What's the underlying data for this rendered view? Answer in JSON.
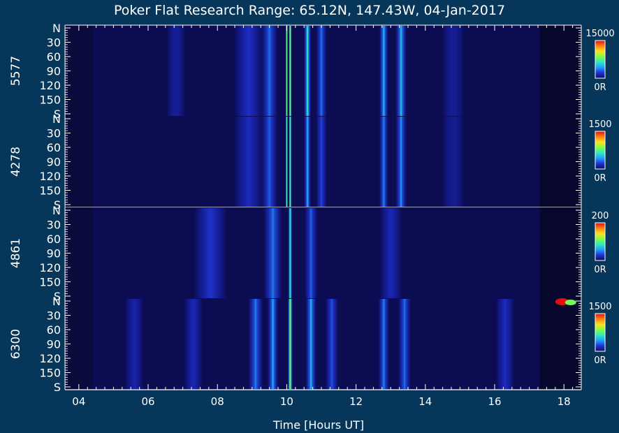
{
  "title": "Poker Flat Research Range: 65.12N, 147.43W, 04-Jan-2017",
  "xlabel": "Time [Hours UT]",
  "chart_data": {
    "type": "heatmap",
    "title": "Poker Flat Research Range: 65.12N, 147.43W, 04-Jan-2017",
    "xlabel": "Time [Hours UT]",
    "xlim": [
      3.6,
      18.5
    ],
    "xticks": [
      "04",
      "06",
      "08",
      "10",
      "12",
      "14",
      "16",
      "18"
    ],
    "xtick_values": [
      4,
      6,
      8,
      10,
      12,
      14,
      16,
      18
    ],
    "y_axis_labels": [
      "N",
      "30",
      "60",
      "90",
      "120",
      "150",
      "S"
    ],
    "y_axis_values": [
      0,
      30,
      60,
      90,
      120,
      150,
      180
    ],
    "grid": false,
    "colormap": [
      "#101060",
      "#2030d0",
      "#20a0ff",
      "#30e8c0",
      "#80ff40",
      "#ffe020",
      "#ff8010",
      "#e01010"
    ],
    "panels": [
      {
        "name": "5577",
        "colorbar_max": "15000",
        "colorbar_min": "0R",
        "bands": [
          {
            "t": 6.8,
            "w": 0.5,
            "v": 0.06
          },
          {
            "t": 8.9,
            "w": 0.8,
            "v": 0.13
          },
          {
            "t": 9.5,
            "w": 0.45,
            "v": 0.22
          },
          {
            "t": 10.0,
            "w": 0.05,
            "v": 0.5
          },
          {
            "t": 10.1,
            "w": 0.08,
            "v": 0.55
          },
          {
            "t": 10.6,
            "w": 0.2,
            "v": 0.42
          },
          {
            "t": 11.0,
            "w": 0.3,
            "v": 0.22
          },
          {
            "t": 12.8,
            "w": 0.25,
            "v": 0.32
          },
          {
            "t": 13.3,
            "w": 0.3,
            "v": 0.34
          },
          {
            "t": 14.8,
            "w": 0.6,
            "v": 0.05
          }
        ]
      },
      {
        "name": "4278",
        "colorbar_max": "1500",
        "colorbar_min": "0R",
        "bands": [
          {
            "t": 8.9,
            "w": 0.8,
            "v": 0.12
          },
          {
            "t": 9.5,
            "w": 0.45,
            "v": 0.2
          },
          {
            "t": 10.0,
            "w": 0.05,
            "v": 0.45
          },
          {
            "t": 10.1,
            "w": 0.08,
            "v": 0.48
          },
          {
            "t": 10.6,
            "w": 0.2,
            "v": 0.3
          },
          {
            "t": 11.0,
            "w": 0.3,
            "v": 0.16
          },
          {
            "t": 12.8,
            "w": 0.25,
            "v": 0.24
          },
          {
            "t": 13.3,
            "w": 0.3,
            "v": 0.26
          },
          {
            "t": 14.8,
            "w": 0.6,
            "v": 0.04
          }
        ]
      },
      {
        "name": "4861",
        "colorbar_max": "200",
        "colorbar_min": "0R",
        "bands": [
          {
            "t": 7.8,
            "w": 0.9,
            "v": 0.14
          },
          {
            "t": 9.6,
            "w": 0.5,
            "v": 0.24
          },
          {
            "t": 10.1,
            "w": 0.12,
            "v": 0.42
          },
          {
            "t": 10.7,
            "w": 0.35,
            "v": 0.2
          },
          {
            "t": 13.0,
            "w": 0.6,
            "v": 0.1
          }
        ]
      },
      {
        "name": "6300",
        "colorbar_max": "1500",
        "colorbar_min": "0R",
        "bands": [
          {
            "t": 5.6,
            "w": 0.5,
            "v": 0.08
          },
          {
            "t": 7.3,
            "w": 0.5,
            "v": 0.1
          },
          {
            "t": 9.1,
            "w": 0.4,
            "v": 0.24
          },
          {
            "t": 9.6,
            "w": 0.3,
            "v": 0.3
          },
          {
            "t": 10.1,
            "w": 0.14,
            "v": 0.55
          },
          {
            "t": 10.7,
            "w": 0.3,
            "v": 0.32
          },
          {
            "t": 11.3,
            "w": 0.35,
            "v": 0.18
          },
          {
            "t": 12.8,
            "w": 0.3,
            "v": 0.24
          },
          {
            "t": 13.4,
            "w": 0.35,
            "v": 0.22
          },
          {
            "t": 16.3,
            "w": 0.5,
            "v": 0.12
          }
        ],
        "hotspot": {
          "t": 17.95,
          "v": 1.0
        }
      }
    ]
  }
}
